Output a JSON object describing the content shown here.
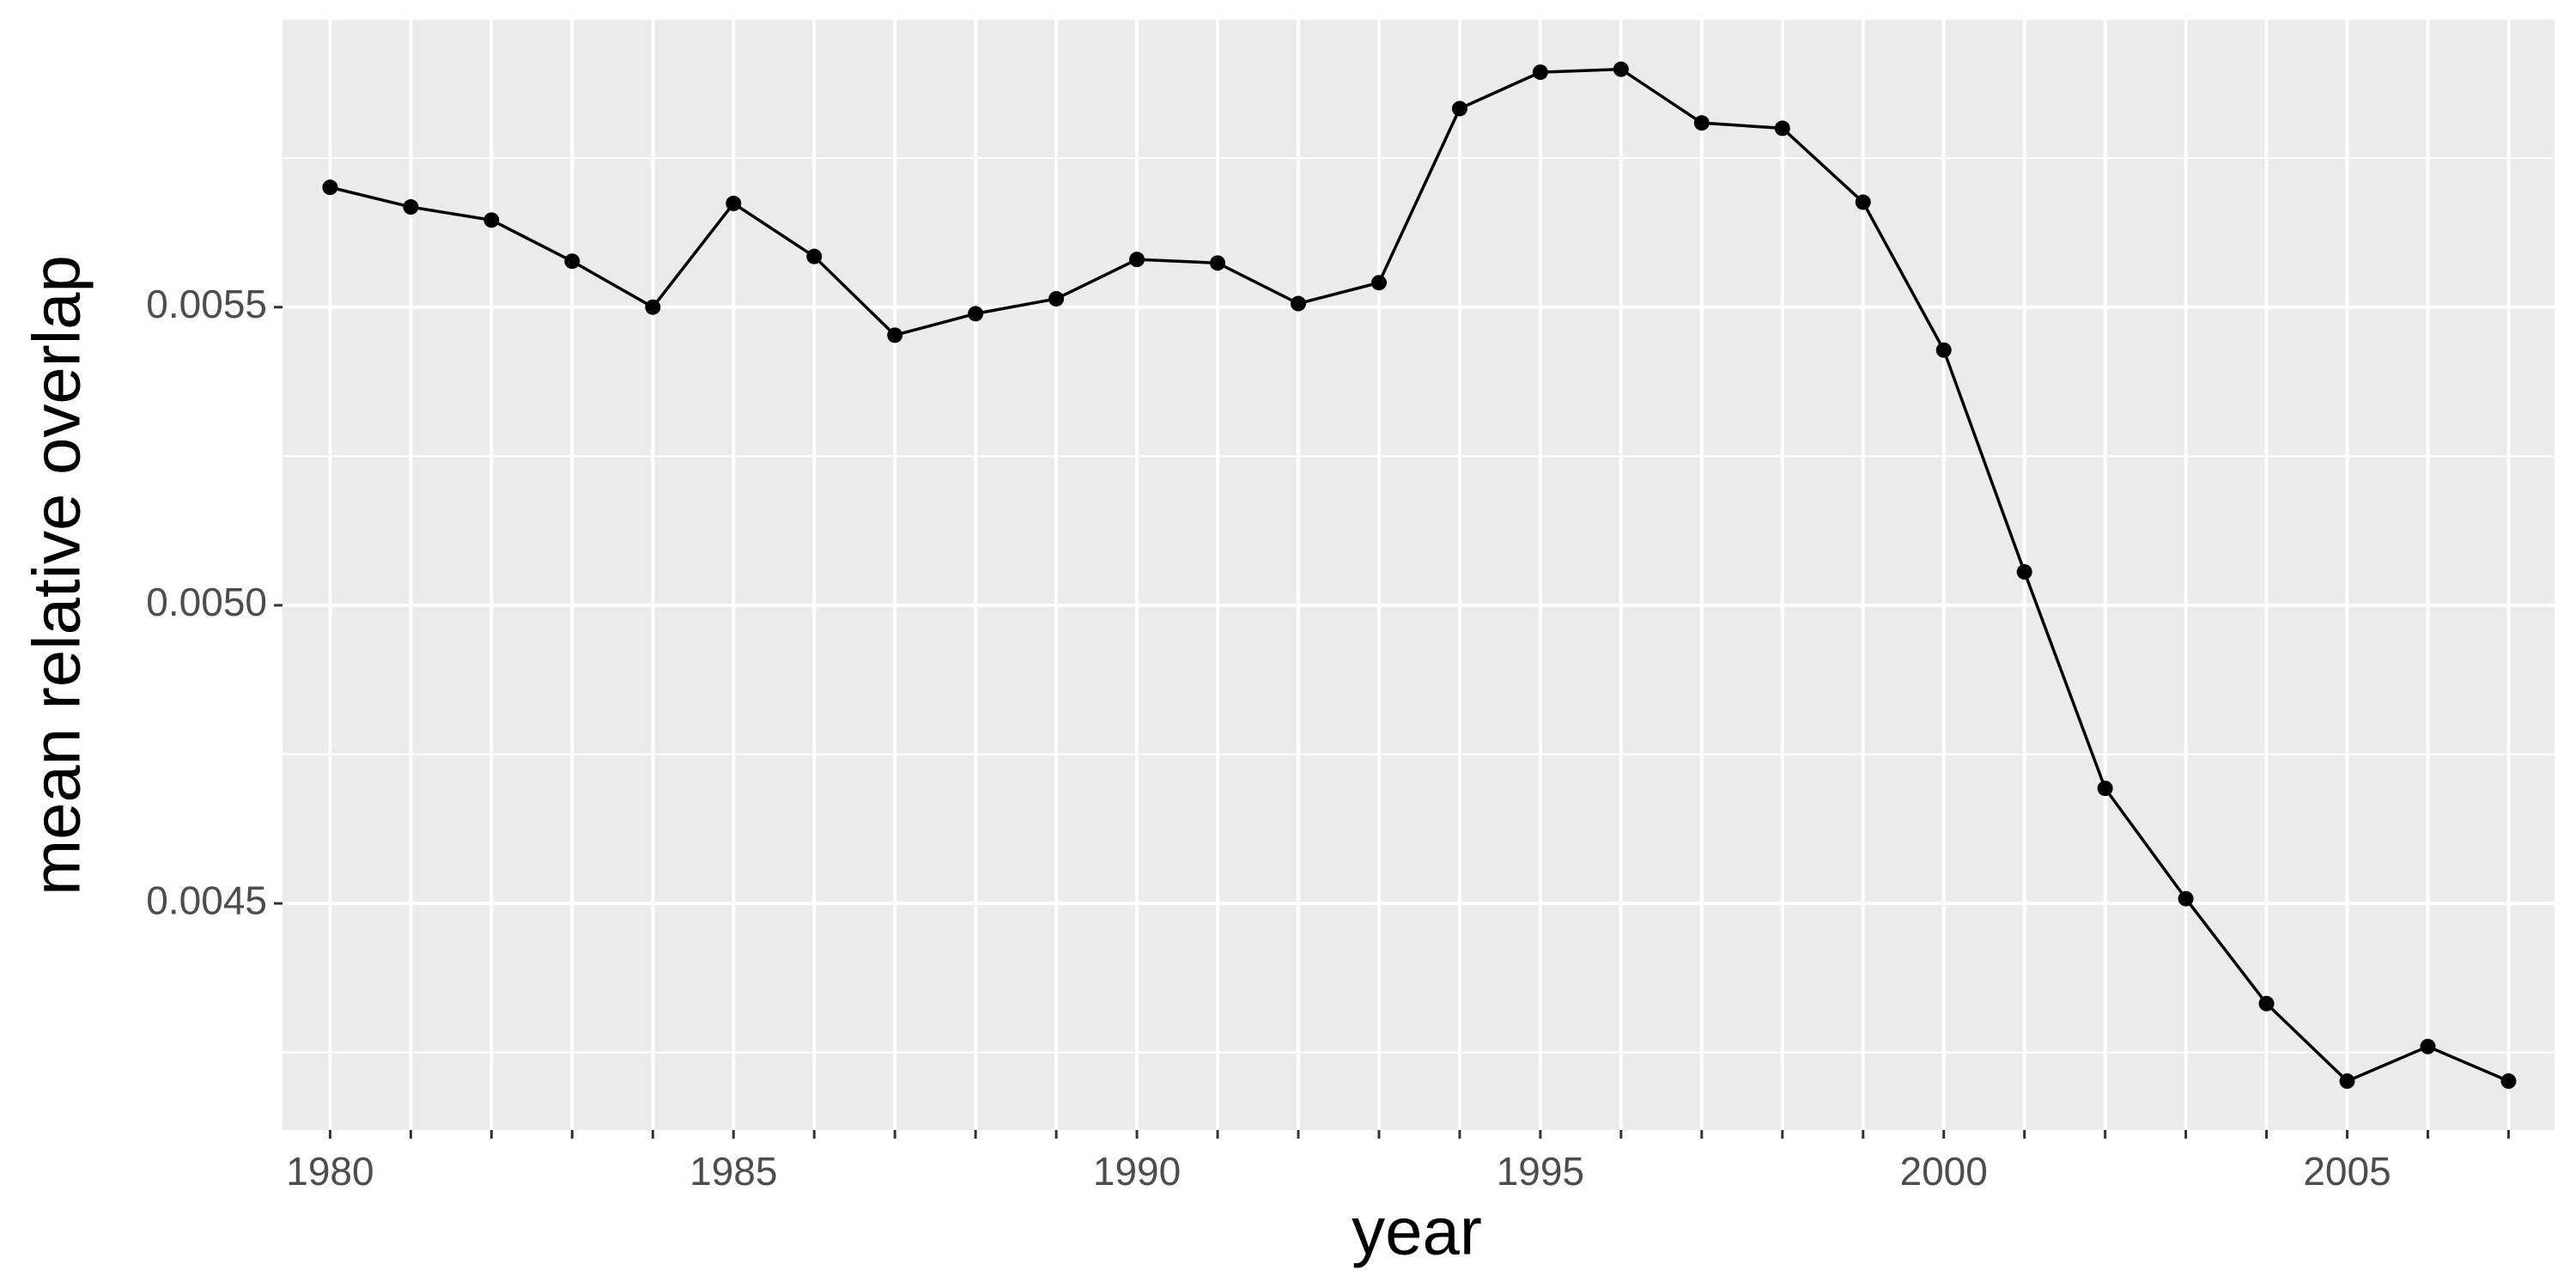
{
  "chart_data": {
    "type": "line",
    "x_label": "year",
    "y_label": "mean relative overlap",
    "x": [
      1980,
      1981,
      1982,
      1983,
      1984,
      1985,
      1986,
      1987,
      1988,
      1989,
      1990,
      1991,
      1992,
      1993,
      1994,
      1995,
      1996,
      1997,
      1998,
      1999,
      2000,
      2001,
      2002,
      2003,
      2004,
      2005,
      2006,
      2007
    ],
    "values": [
      0.005701,
      0.005668,
      0.005646,
      0.005577,
      0.0055,
      0.005674,
      0.005585,
      0.005453,
      0.005489,
      0.005514,
      0.00558,
      0.005574,
      0.005506,
      0.005541,
      0.005833,
      0.005894,
      0.005899,
      0.005809,
      0.0058,
      0.005676,
      0.005428,
      0.005056,
      0.004693,
      0.004508,
      0.004332,
      0.004202,
      0.00426,
      0.004202
    ],
    "color": "#000000",
    "xlim": [
      1979.41,
      2007.57
    ],
    "ylim": [
      0.00412,
      0.005982
    ],
    "xticks": [
      1980,
      {
        "value": 1981,
        "label": null
      },
      {
        "value": 1982,
        "label": null
      },
      {
        "value": 1983,
        "label": null
      },
      {
        "value": 1984,
        "label": null
      },
      1985,
      {
        "value": 1986,
        "label": null
      },
      {
        "value": 1987,
        "label": null
      },
      {
        "value": 1988,
        "label": null
      },
      {
        "value": 1989,
        "label": null
      },
      1990,
      {
        "value": 1991,
        "label": null
      },
      {
        "value": 1992,
        "label": null
      },
      {
        "value": 1993,
        "label": null
      },
      {
        "value": 1994,
        "label": null
      },
      1995,
      {
        "value": 1996,
        "label": null
      },
      {
        "value": 1997,
        "label": null
      },
      {
        "value": 1998,
        "label": null
      },
      {
        "value": 1999,
        "label": null
      },
      2000,
      {
        "value": 2001,
        "label": null
      },
      {
        "value": 2002,
        "label": null
      },
      {
        "value": 2003,
        "label": null
      },
      {
        "value": 2004,
        "label": null
      },
      2005,
      {
        "value": 2006,
        "label": null
      },
      {
        "value": 2007,
        "label": null
      }
    ],
    "yticks": [
      {
        "value": 0.0045,
        "label": "0.0045"
      },
      {
        "value": 0.005,
        "label": "0.0050"
      },
      {
        "value": 0.0055,
        "label": "0.0055"
      }
    ],
    "yminor": [
      0.00425,
      0.00475,
      0.00525,
      0.00575
    ],
    "grid": true
  }
}
